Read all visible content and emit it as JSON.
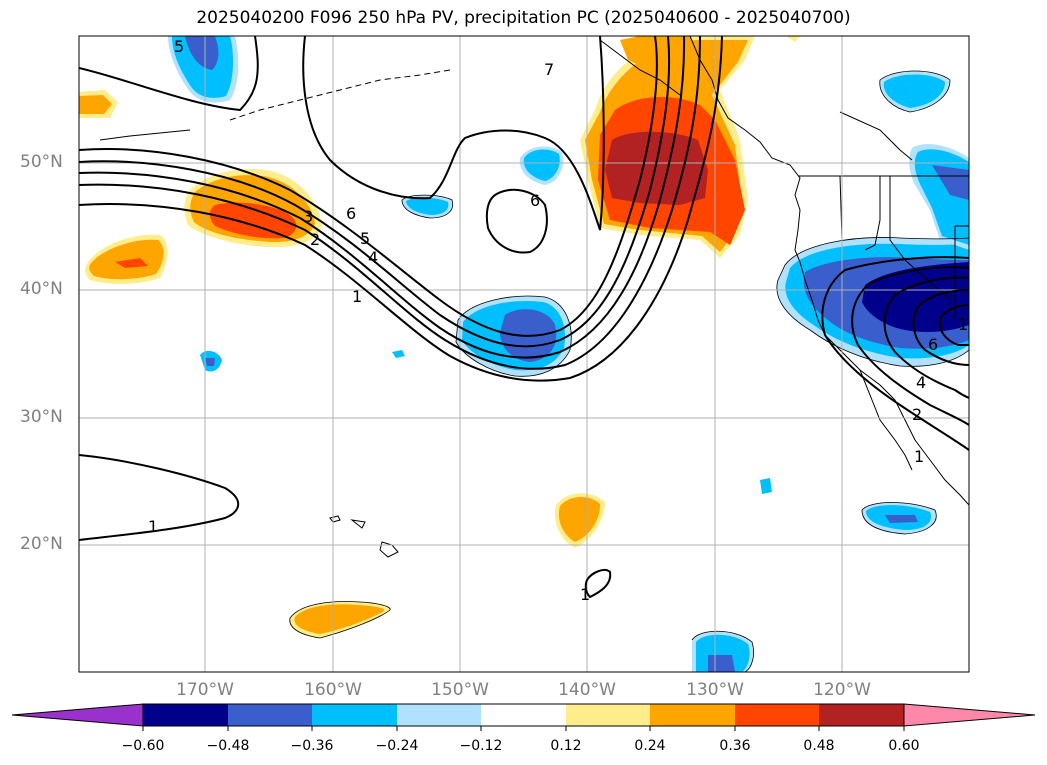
{
  "title": "2025040200 F096 250 hPa PV, precipitation PC (2025040600 - 2025040700)",
  "lat_labels": [
    "50°N",
    "40°N",
    "30°N",
    "20°N"
  ],
  "lon_labels": [
    "170°W",
    "160°W",
    "150°W",
    "140°W",
    "130°W",
    "120°W"
  ],
  "colorbar": {
    "ticks": [
      "−0.60",
      "−0.48",
      "−0.36",
      "−0.24",
      "−0.12",
      "0.12",
      "0.24",
      "0.36",
      "0.48",
      "0.60"
    ],
    "colors": [
      "#9932cc",
      "#00008b",
      "#3a5fcd",
      "#00bfff",
      "#b0e2ff",
      "#ffffff",
      "#ffec8b",
      "#ffa500",
      "#ff4500",
      "#b22222",
      "#ff88aa"
    ]
  },
  "contour_labels": [
    "5",
    "7",
    "6",
    "6",
    "5",
    "4",
    "3",
    "2",
    "1",
    "1",
    "1",
    "1",
    "2",
    "4",
    "6",
    "1"
  ],
  "colors": {
    "neg_light": "#b0e2ff",
    "neg_mid": "#00bfff",
    "neg_blue": "#3a5fcd",
    "neg_navy": "#00008b",
    "pos_light": "#ffec8b",
    "pos_orange": "#ffa500",
    "pos_red": "#ff4500",
    "pos_dark": "#b22222",
    "grid": "#b0b0b0",
    "contour": "#000000"
  }
}
